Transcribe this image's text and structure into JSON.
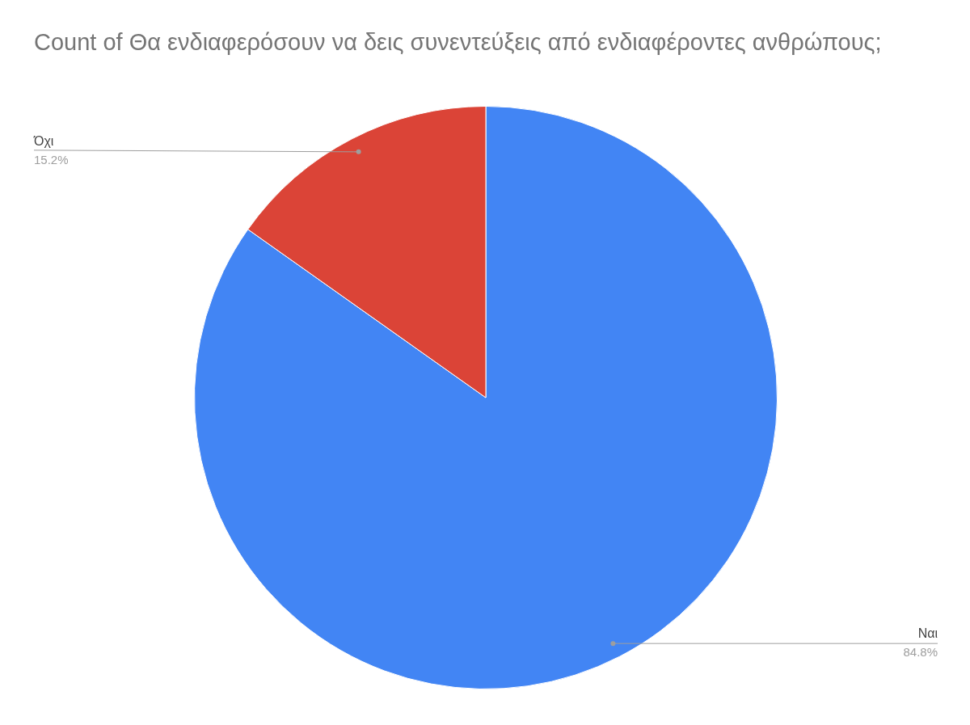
{
  "chart_data": {
    "type": "pie",
    "title": "Count of Θα ενδιαφερόσουν να δεις συνεντεύξεις από ενδιαφέροντες ανθρώπους;",
    "categories": [
      "Ναι",
      "Όχι"
    ],
    "values": [
      84.8,
      15.2
    ],
    "value_labels": [
      "84.8%",
      "15.2%"
    ],
    "colors": [
      "#4285f4",
      "#db4437"
    ],
    "legend": false
  }
}
